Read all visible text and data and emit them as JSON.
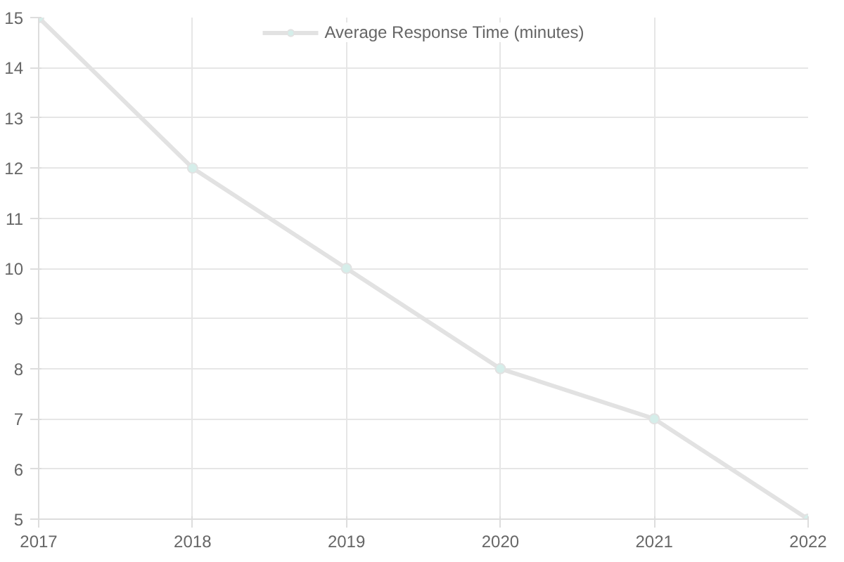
{
  "chart_data": {
    "type": "line",
    "x": [
      2017,
      2018,
      2019,
      2020,
      2021,
      2022
    ],
    "series": [
      {
        "name": "Average Response Time (minutes)",
        "color": "#e2e2e2",
        "values": [
          15,
          12,
          10,
          8,
          7,
          5
        ]
      }
    ],
    "xlim": [
      2017,
      2022
    ],
    "xticks": [
      2017,
      2018,
      2019,
      2020,
      2021,
      2022
    ],
    "ylim": [
      5,
      15
    ],
    "yticks": [
      5,
      6,
      7,
      8,
      9,
      10,
      11,
      12,
      13,
      14,
      15
    ],
    "grid": true,
    "legend": "top",
    "marker": "circle",
    "line_style": "solid"
  }
}
